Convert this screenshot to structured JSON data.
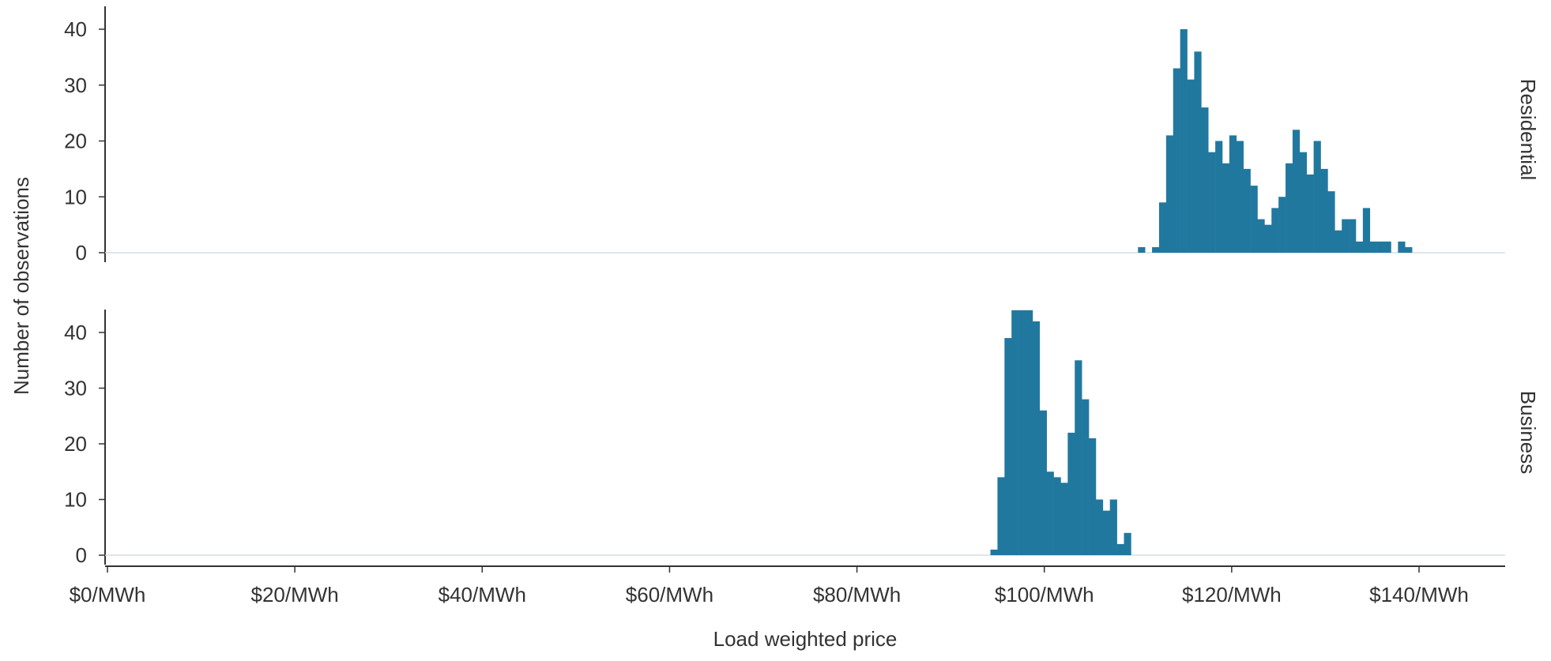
{
  "colors": {
    "bar": "#21789f",
    "axis": "#333333",
    "baseline": "#d6dee6",
    "text": "#333333"
  },
  "chart_data": {
    "type": "bar",
    "subtype": "faceted-histogram",
    "ylabel": "Number of observations",
    "xlabel": "Load weighted price",
    "xlim": [
      0,
      150
    ],
    "ylim": [
      0,
      44
    ],
    "xticks": [
      {
        "value": 0,
        "label": "$0/MWh"
      },
      {
        "value": 20,
        "label": "$20/MWh"
      },
      {
        "value": 40,
        "label": "$40/MWh"
      },
      {
        "value": 60,
        "label": "$60/MWh"
      },
      {
        "value": 80,
        "label": "$80/MWh"
      },
      {
        "value": 100,
        "label": "$100/MWh"
      },
      {
        "value": 120,
        "label": "$120/MWh"
      },
      {
        "value": 140,
        "label": "$140/MWh"
      }
    ],
    "yticks": [
      {
        "value": 0,
        "label": "0"
      },
      {
        "value": 10,
        "label": "10"
      },
      {
        "value": 20,
        "label": "20"
      },
      {
        "value": 30,
        "label": "30"
      },
      {
        "value": 40,
        "label": "40"
      }
    ],
    "bin_width": 0.75,
    "panels": [
      {
        "name": "Residential",
        "bins_start": 110,
        "counts": [
          1,
          0,
          1,
          9,
          21,
          33,
          40,
          31,
          36,
          26,
          18,
          20,
          16,
          21,
          20,
          15,
          12,
          6,
          5,
          8,
          10,
          16,
          22,
          18,
          14,
          20,
          15,
          11,
          4,
          6,
          6,
          2,
          8,
          2,
          2,
          2,
          0,
          2,
          1
        ]
      },
      {
        "name": "Business",
        "bins_start": 94.25,
        "counts": [
          1,
          14,
          39,
          44,
          44,
          44,
          42,
          26,
          15,
          14,
          13,
          22,
          35,
          28,
          21,
          10,
          8,
          10,
          2,
          4
        ]
      }
    ]
  }
}
